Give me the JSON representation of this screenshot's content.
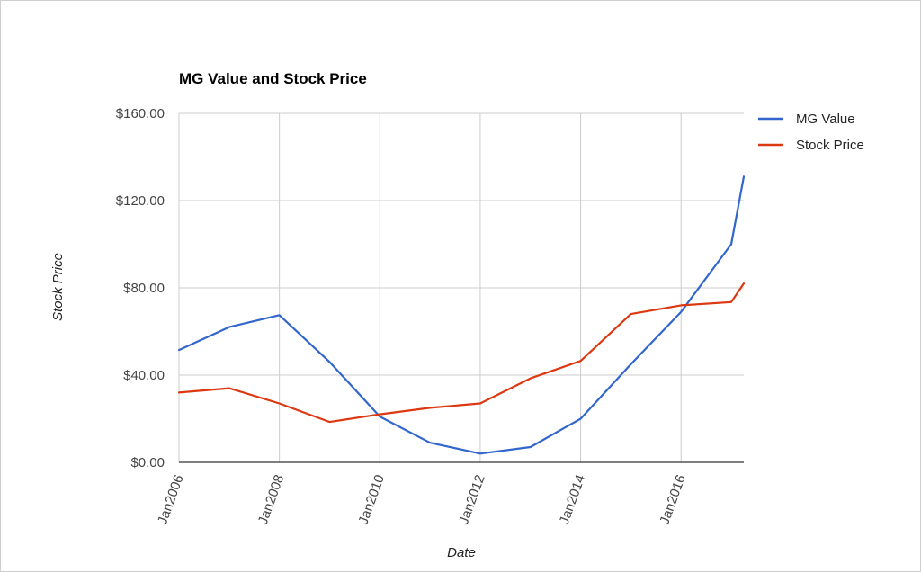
{
  "chart_data": {
    "type": "line",
    "title": "MG Value and Stock Price",
    "xlabel": "Date",
    "ylabel": "Stock Price",
    "x": [
      "2006-01",
      "2007-01",
      "2008-01",
      "2009-01",
      "2010-01",
      "2011-01",
      "2012-01",
      "2013-01",
      "2014-01",
      "2015-01",
      "2016-01",
      "2017-01",
      "2017-04"
    ],
    "x_ticks": [
      "Jan2006",
      "Jan2008",
      "Jan2010",
      "Jan2012",
      "Jan2014",
      "Jan2016"
    ],
    "y_ticks": [
      "$0.00",
      "$40.00",
      "$80.00",
      "$120.00",
      "$160.00"
    ],
    "ylim": [
      0,
      160
    ],
    "grid": true,
    "legend_position": "right",
    "series": [
      {
        "name": "MG Value",
        "color": "#3366cc",
        "values": [
          51.5,
          62,
          67.5,
          46,
          21,
          9,
          4,
          7,
          20,
          45,
          69,
          100,
          131
        ]
      },
      {
        "name": "Stock Price",
        "color": "#dc3912",
        "values": [
          32,
          34,
          27,
          18.5,
          22,
          25,
          27,
          38.5,
          46.5,
          68,
          72,
          73.5,
          82
        ]
      }
    ]
  }
}
